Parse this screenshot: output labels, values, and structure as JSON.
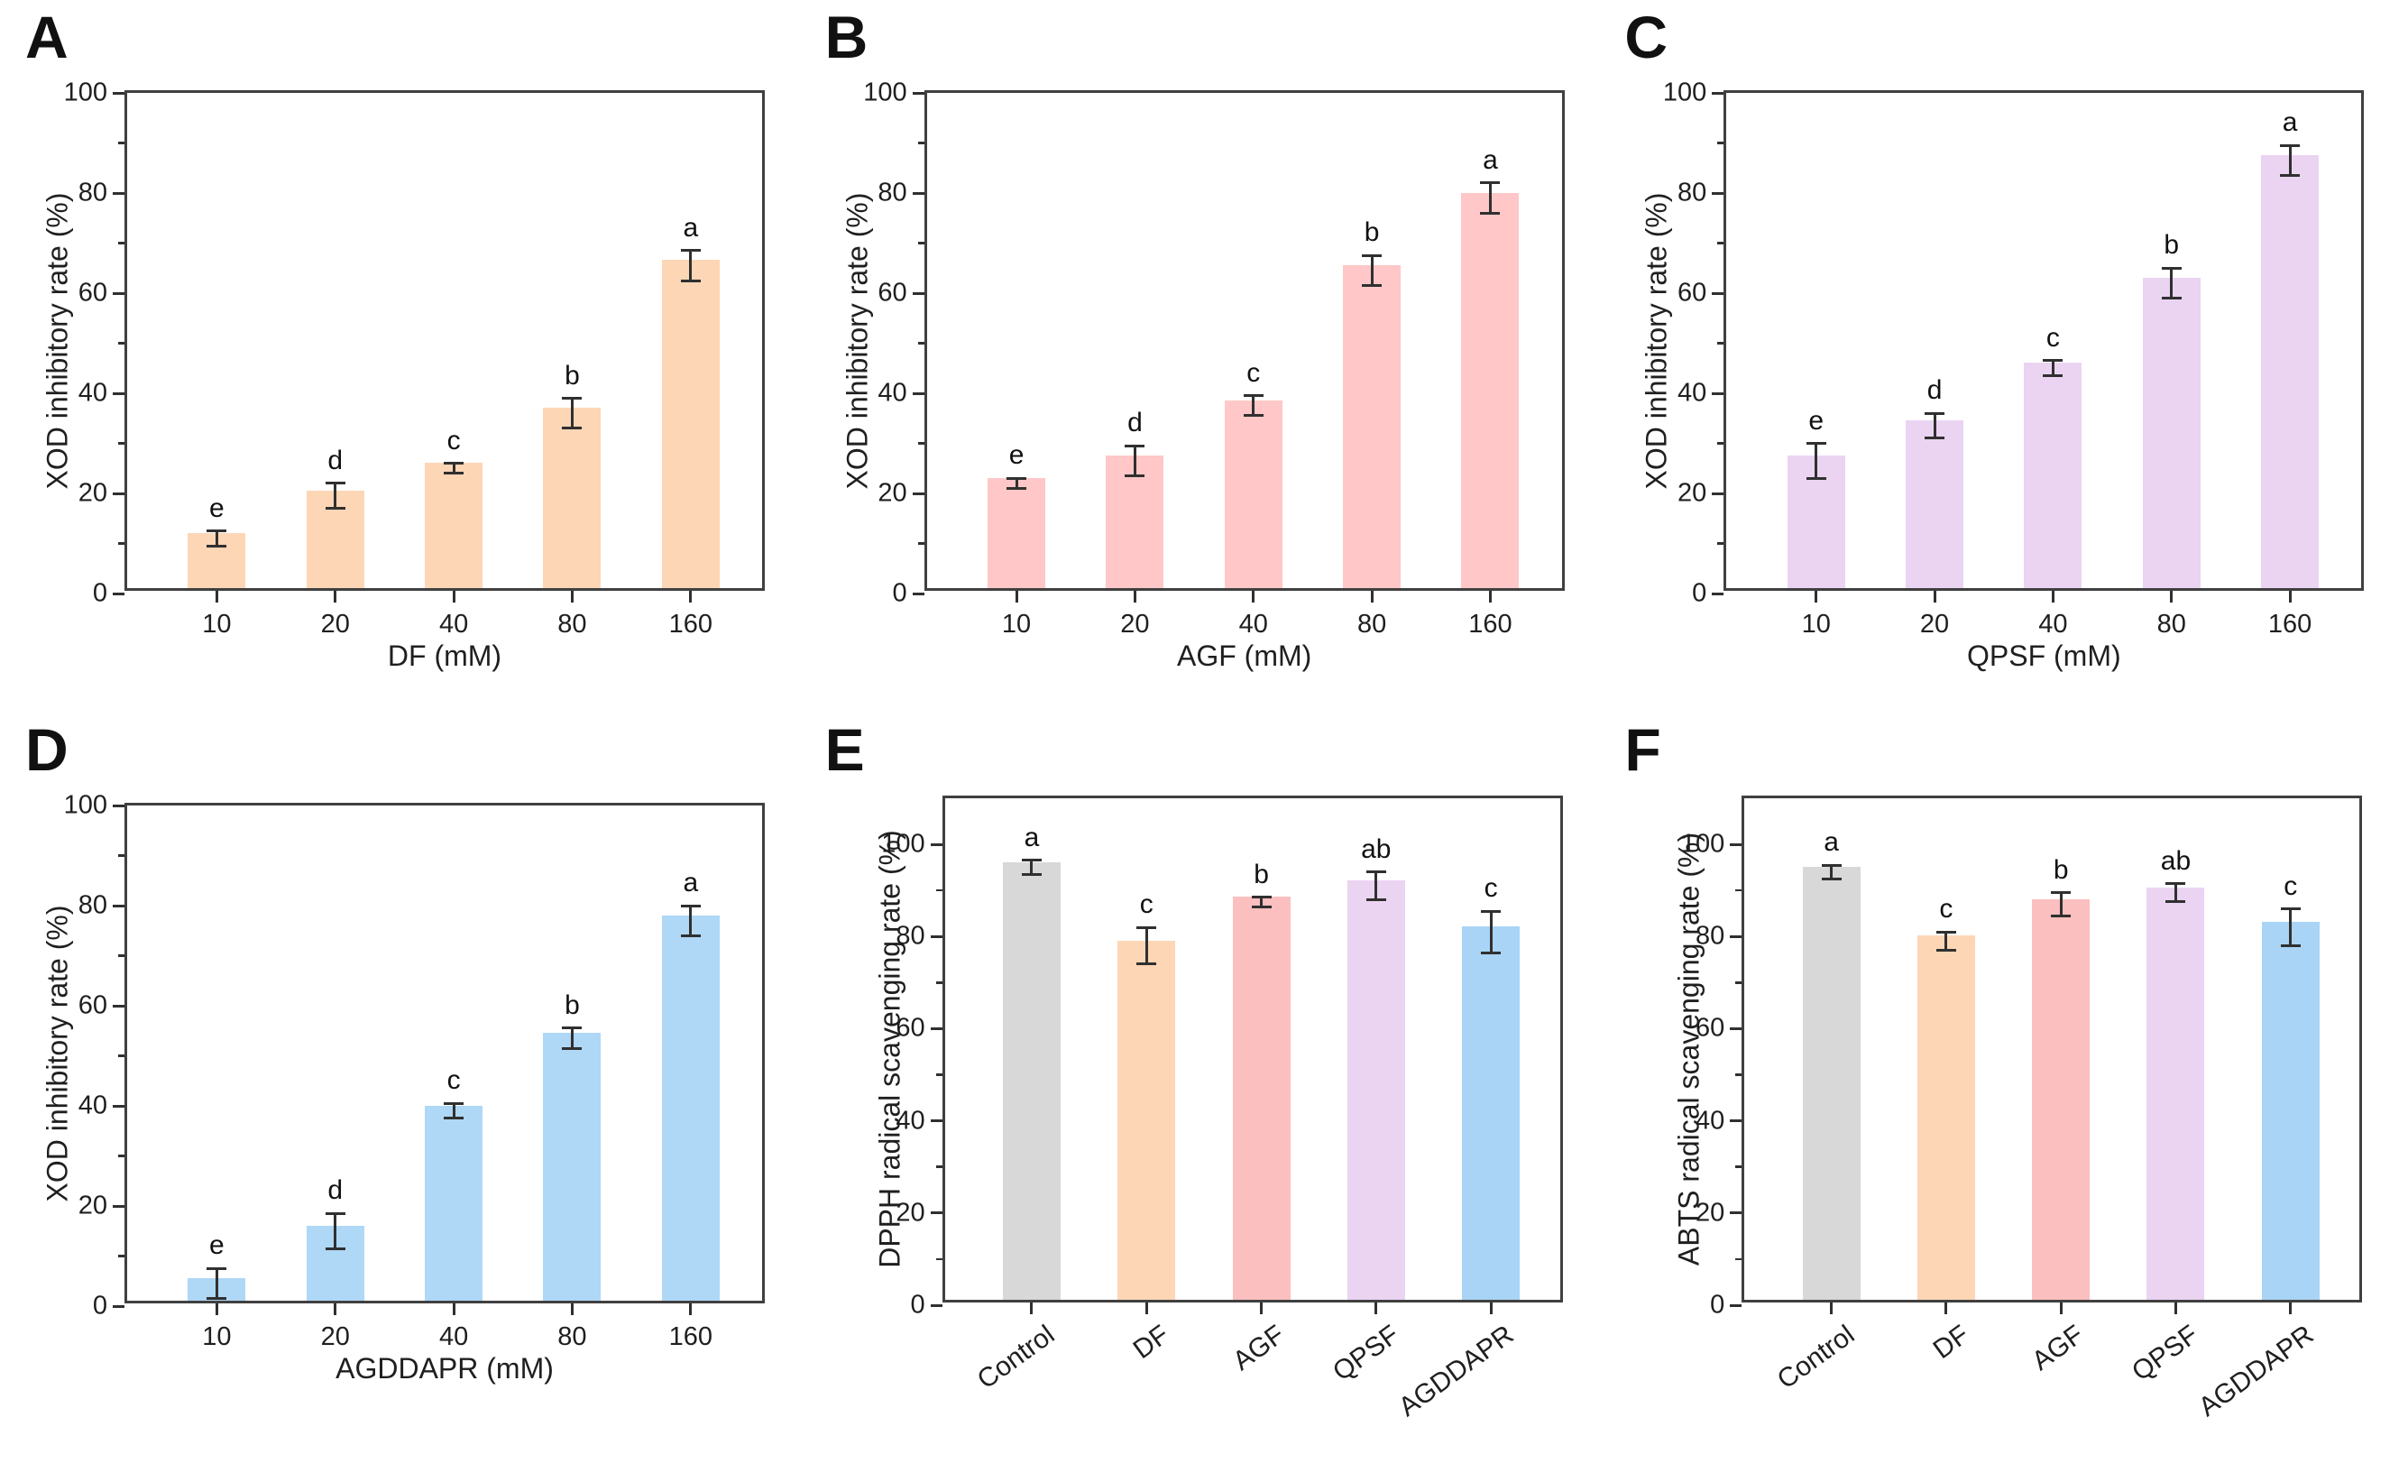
{
  "figure": {
    "background": "#ffffff",
    "axis_color": "#404040",
    "errorbar_color": "#303030",
    "panel_labels": [
      "A",
      "B",
      "C",
      "D",
      "E",
      "F"
    ]
  },
  "chart_data": [
    {
      "panel_label": "A",
      "type": "bar",
      "xlabel": "DF (mM)",
      "ylabel": "XOD inhibitory rate (%)",
      "categories": [
        "10",
        "20",
        "40",
        "80",
        "160"
      ],
      "values": [
        11,
        19.5,
        25,
        36,
        65.5
      ],
      "errors": [
        1.5,
        2.5,
        1,
        3,
        3
      ],
      "sig_letters": [
        "e",
        "d",
        "c",
        "b",
        "a"
      ],
      "bar_color": "#FDD6B6",
      "ylim": [
        0,
        100
      ],
      "yticks": [
        0,
        20,
        40,
        60,
        80,
        100
      ],
      "yminorticks": [
        10,
        30,
        50,
        70,
        90
      ],
      "rotated_xticks": false,
      "grid": false
    },
    {
      "panel_label": "B",
      "type": "bar",
      "xlabel": "AGF (mM)",
      "ylabel": "XOD inhibitory rate (%)",
      "categories": [
        "10",
        "20",
        "40",
        "80",
        "160"
      ],
      "values": [
        22,
        26.5,
        37.5,
        64.5,
        79
      ],
      "errors": [
        1,
        3,
        2,
        3,
        3
      ],
      "sig_letters": [
        "e",
        "d",
        "c",
        "b",
        "a"
      ],
      "bar_color": "#FFC7C7",
      "ylim": [
        0,
        100
      ],
      "yticks": [
        0,
        20,
        40,
        60,
        80,
        100
      ],
      "yminorticks": [
        10,
        30,
        50,
        70,
        90
      ],
      "rotated_xticks": false,
      "grid": false
    },
    {
      "panel_label": "C",
      "type": "bar",
      "xlabel": "QPSF (mM)",
      "ylabel": "XOD inhibitory rate (%)",
      "categories": [
        "10",
        "20",
        "40",
        "80",
        "160"
      ],
      "values": [
        26.5,
        33.5,
        45,
        62,
        86.5
      ],
      "errors": [
        3.5,
        2.5,
        1.5,
        3,
        3
      ],
      "sig_letters": [
        "e",
        "d",
        "c",
        "b",
        "a"
      ],
      "bar_color": "#EAD4F2",
      "ylim": [
        0,
        100
      ],
      "yticks": [
        0,
        20,
        40,
        60,
        80,
        100
      ],
      "yminorticks": [
        10,
        30,
        50,
        70,
        90
      ],
      "rotated_xticks": false,
      "grid": false
    },
    {
      "panel_label": "D",
      "type": "bar",
      "xlabel": "AGDDAPR (mM)",
      "ylabel": "XOD inhibitory rate (%)",
      "categories": [
        "10",
        "20",
        "40",
        "80",
        "160"
      ],
      "values": [
        4.5,
        15,
        39,
        53.5,
        77
      ],
      "errors": [
        3,
        3.5,
        1.5,
        2,
        3
      ],
      "sig_letters": [
        "e",
        "d",
        "c",
        "b",
        "a"
      ],
      "bar_color": "#AFD7F6",
      "ylim": [
        0,
        100
      ],
      "yticks": [
        0,
        20,
        40,
        60,
        80,
        100
      ],
      "yminorticks": [
        10,
        30,
        50,
        70,
        90
      ],
      "rotated_xticks": false,
      "grid": false
    },
    {
      "panel_label": "E",
      "type": "bar",
      "xlabel": "",
      "ylabel": "DPPH radical scavenging rate (%)",
      "categories": [
        "Control",
        "DF",
        "AGF",
        "QPSF",
        "AGDDAPR"
      ],
      "values": [
        95,
        78,
        87.5,
        91,
        81
      ],
      "errors": [
        1.5,
        4,
        1,
        3,
        4.5
      ],
      "sig_letters": [
        "a",
        "c",
        "b",
        "ab",
        "c"
      ],
      "bar_colors": [
        "#D8D8D8",
        "#FDD6B6",
        "#FBBFBF",
        "#EAD4F2",
        "#A9D4F5"
      ],
      "ylim": [
        0,
        110
      ],
      "yticks": [
        0,
        20,
        40,
        60,
        80,
        100
      ],
      "yminorticks": [
        10,
        30,
        50,
        70,
        90
      ],
      "rotated_xticks": true,
      "grid": false
    },
    {
      "panel_label": "F",
      "type": "bar",
      "xlabel": "",
      "ylabel": "ABTS radical scavenging rate (%)",
      "categories": [
        "Control",
        "DF",
        "AGF",
        "QPSF",
        "AGDDAPR"
      ],
      "values": [
        94,
        79,
        87,
        89.5,
        82
      ],
      "errors": [
        1.5,
        2,
        2.5,
        2,
        4
      ],
      "sig_letters": [
        "a",
        "c",
        "b",
        "ab",
        "c"
      ],
      "bar_colors": [
        "#D8D8D8",
        "#FDD6B6",
        "#FBBFBF",
        "#EAD4F2",
        "#A9D4F5"
      ],
      "ylim": [
        0,
        110
      ],
      "yticks": [
        0,
        20,
        40,
        60,
        80,
        100
      ],
      "yminorticks": [
        10,
        30,
        50,
        70,
        90
      ],
      "rotated_xticks": true,
      "grid": false
    }
  ]
}
